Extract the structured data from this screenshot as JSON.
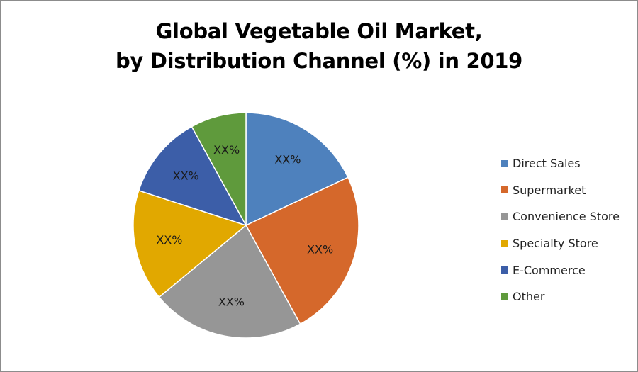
{
  "chart_data": {
    "type": "pie",
    "title_lines": [
      "Global Vegetable Oil Market,",
      "by Distribution Channel (%) in 2019"
    ],
    "categories": [
      "Direct Sales",
      "Supermarket",
      "Convenience Store",
      "Specialty Store",
      "E-Commerce",
      "Other"
    ],
    "values": [
      18,
      24,
      22,
      16,
      12,
      8
    ],
    "data_labels": [
      "XX%",
      "XX%",
      "XX%",
      "XX%",
      "XX%",
      "XX%"
    ],
    "colors": [
      "#4e81bd",
      "#d5682b",
      "#969696",
      "#e1a800",
      "#3c5ea8",
      "#5f9a3c"
    ],
    "start_angle": "12 o'clock, clockwise",
    "legend_position": "right"
  }
}
